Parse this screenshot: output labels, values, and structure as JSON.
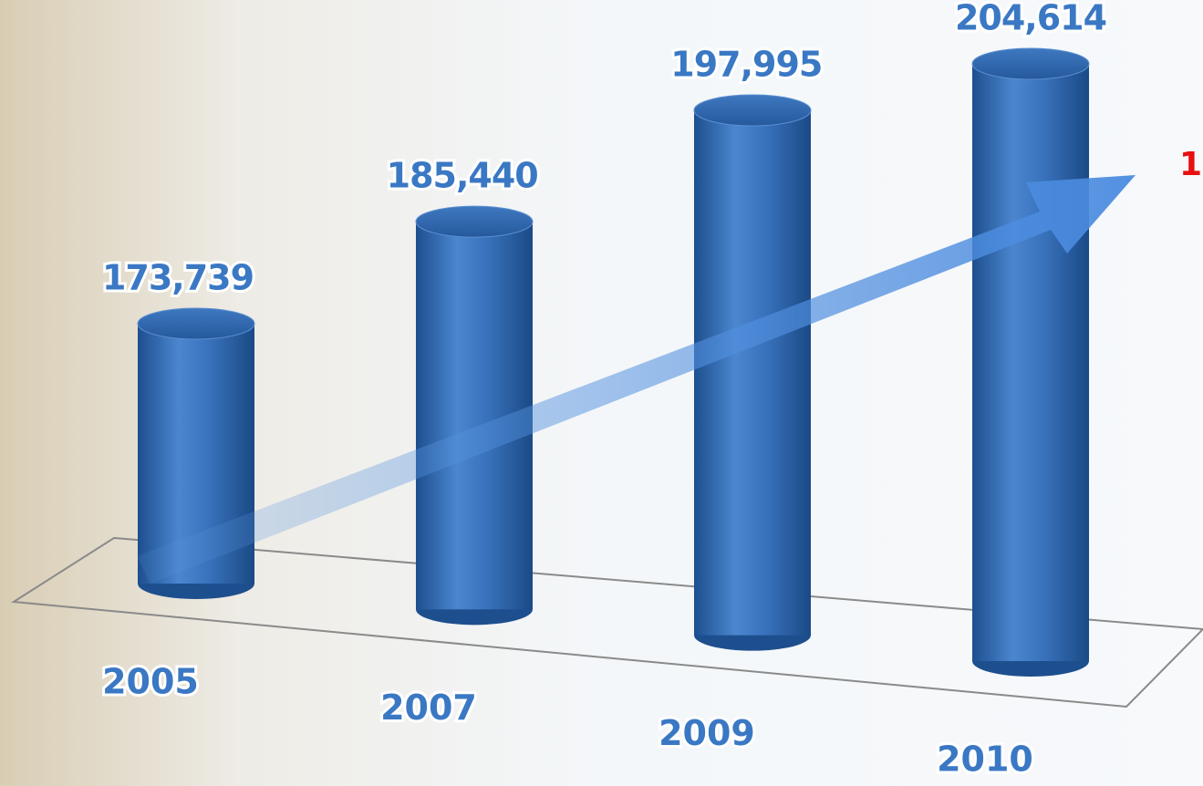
{
  "chart_data": {
    "type": "bar",
    "categories": [
      "2005",
      "2007",
      "2009",
      "2010"
    ],
    "values": [
      173739,
      185440,
      197995,
      204614
    ],
    "value_labels": [
      "173,739",
      "185,440",
      "197,995",
      "204,614"
    ],
    "color": "#2f6db5",
    "annotation": "1"
  }
}
